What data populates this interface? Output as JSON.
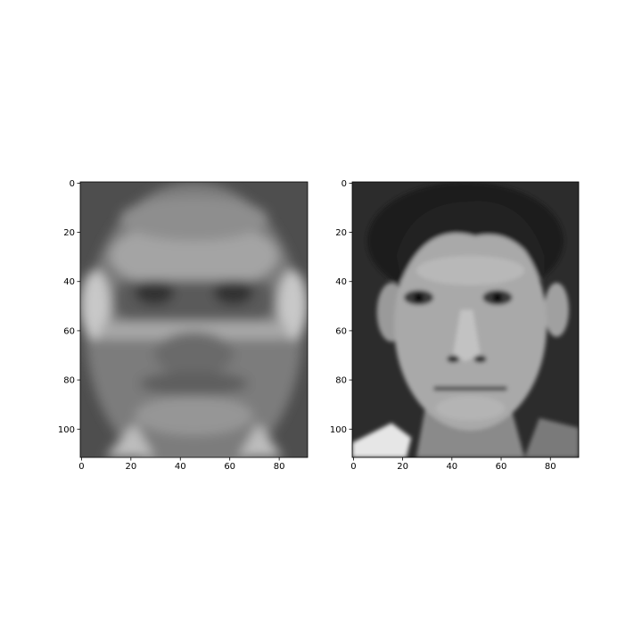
{
  "chart_data": [
    {
      "type": "image",
      "xlim": [
        -0.5,
        91.5
      ],
      "ylim": [
        111.5,
        -0.5
      ],
      "xticks": [
        0,
        20,
        40,
        60,
        80
      ],
      "yticks": [
        0,
        20,
        40,
        60,
        80,
        100
      ]
    },
    {
      "type": "image",
      "xlim": [
        -0.5,
        91.5
      ],
      "ylim": [
        111.5,
        -0.5
      ],
      "xticks": [
        0,
        20,
        40,
        60,
        80
      ],
      "yticks": [
        0,
        20,
        40,
        60,
        80,
        100
      ]
    }
  ]
}
